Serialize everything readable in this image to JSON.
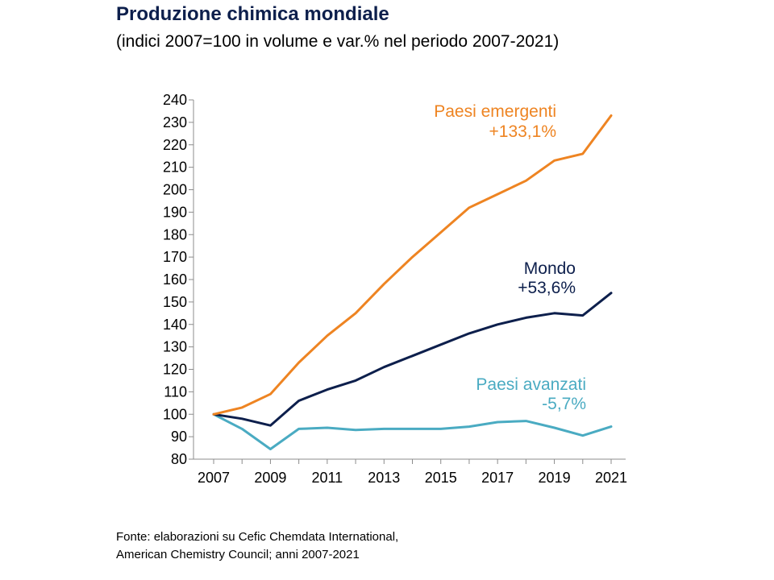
{
  "header": {
    "title": "Produzione chimica mondiale",
    "subtitle": "(indici 2007=100 in volume e var.% nel periodo 2007-2021)"
  },
  "source": {
    "line1": "Fonte: elaborazioni su Cefic Chemdata International,",
    "line2": "American Chemistry Council; anni 2007-2021"
  },
  "chart_data": {
    "type": "line",
    "title": "Produzione chimica mondiale",
    "subtitle": "(indici 2007=100 in volume e var.% nel periodo 2007-2021)",
    "xlabel": "",
    "ylabel": "",
    "x": [
      2007,
      2008,
      2009,
      2010,
      2011,
      2012,
      2013,
      2014,
      2015,
      2016,
      2017,
      2018,
      2019,
      2020,
      2021
    ],
    "x_tick_labels": [
      "2007",
      "2009",
      "2011",
      "2013",
      "2015",
      "2017",
      "2019",
      "2021"
    ],
    "x_tick_values": [
      2007,
      2009,
      2011,
      2013,
      2015,
      2017,
      2019,
      2021
    ],
    "xlim": [
      2007,
      2021
    ],
    "ylim": [
      80,
      240
    ],
    "y_ticks": [
      80,
      90,
      100,
      110,
      120,
      130,
      140,
      150,
      160,
      170,
      180,
      190,
      200,
      210,
      220,
      230,
      240
    ],
    "grid": false,
    "legend": "none (inline labels)",
    "series": [
      {
        "name": "Paesi emergenti",
        "change_label": "+133,1%",
        "color": "#ee8422",
        "values": [
          100,
          103,
          109,
          123,
          135,
          145,
          158,
          170,
          181,
          192,
          198,
          204,
          213,
          216,
          233
        ]
      },
      {
        "name": "Mondo",
        "change_label": "+53,6%",
        "color": "#0d1f4c",
        "values": [
          100,
          98,
          95,
          106,
          111,
          115,
          121,
          126,
          131,
          136,
          140,
          143,
          145,
          144,
          154
        ]
      },
      {
        "name": "Paesi avanzati",
        "change_label": "-5,7%",
        "color": "#4aabc2",
        "values": [
          100,
          93.5,
          84.5,
          93.5,
          94,
          93,
          93.5,
          93.5,
          93.5,
          94.5,
          96.5,
          97,
          94,
          90.5,
          94.5
        ]
      }
    ]
  }
}
